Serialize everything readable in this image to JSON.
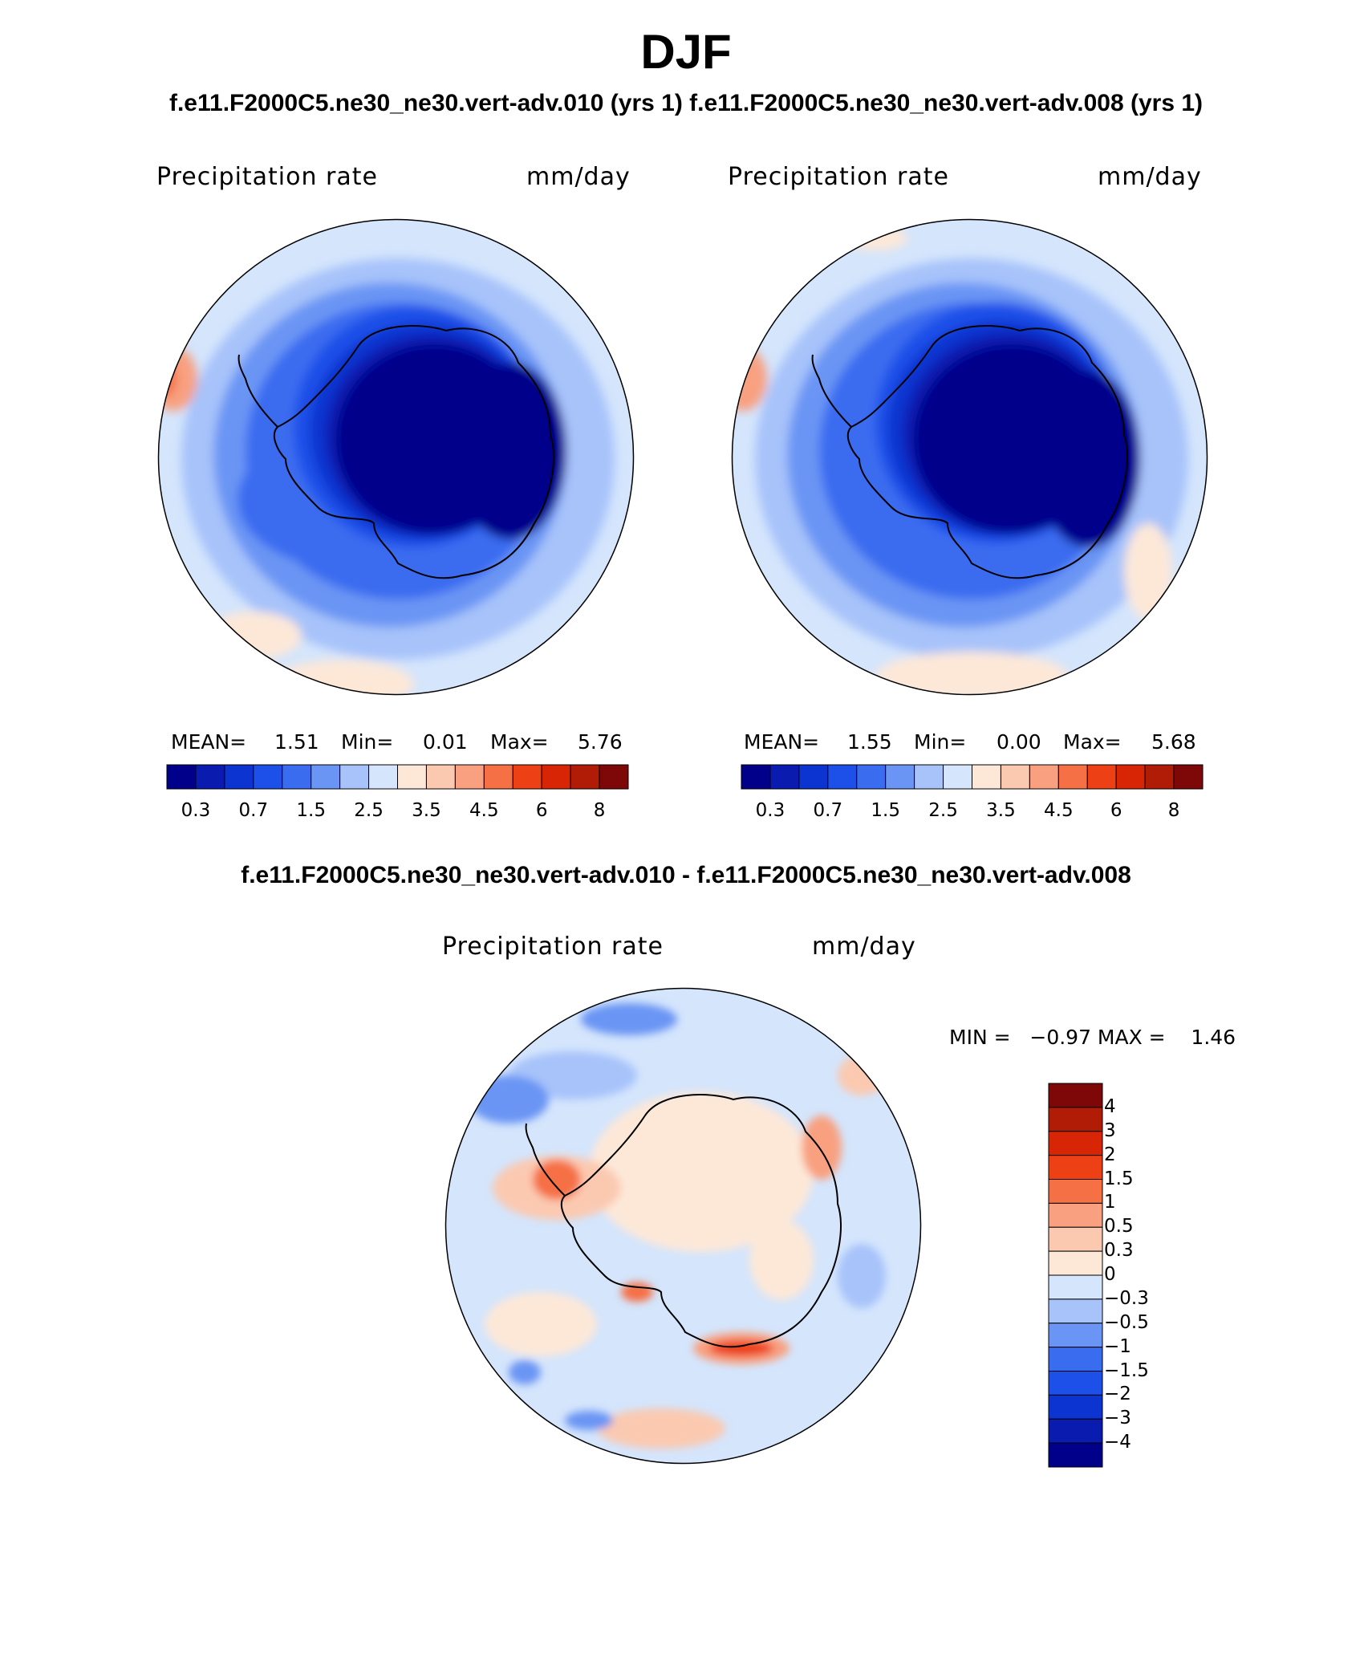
{
  "title": "DJF",
  "subtitle_top": "f.e11.F2000C5.ne30_ne30.vert-adv.010 (yrs 1) f.e11.F2000C5.ne30_ne30.vert-adv.008 (yrs 1)",
  "subtitle_diff": "f.e11.F2000C5.ne30_ne30.vert-adv.010 - f.e11.F2000C5.ne30_ne30.vert-adv.008",
  "panels": [
    {
      "variable": "Precipitation rate",
      "units": "mm/day",
      "mean_label": "MEAN=",
      "mean": "1.51",
      "min_label": "Min=",
      "min": "0.01",
      "max_label": "Max=",
      "max": "5.76"
    },
    {
      "variable": "Precipitation rate",
      "units": "mm/day",
      "mean_label": "MEAN=",
      "mean": "1.55",
      "min_label": "Min=",
      "min": "0.00",
      "max_label": "Max=",
      "max": "5.68"
    }
  ],
  "diff_panel": {
    "variable": "Precipitation rate",
    "units": "mm/day",
    "minmax_text": "MIN =   −0.97 MAX =    1.46"
  },
  "colorbar_top": {
    "colors": [
      "#00008b",
      "#0a1bb0",
      "#0b34d0",
      "#1c50e8",
      "#3a6cf0",
      "#6a95f4",
      "#a7c3fa",
      "#d4e5fc",
      "#fde8d8",
      "#fbc9b0",
      "#f8a080",
      "#f57044",
      "#ed4015",
      "#d82505",
      "#b01c05",
      "#7e0808"
    ],
    "ticks": [
      "0.3",
      "0.7",
      "1.5",
      "2.5",
      "3.5",
      "4.5",
      "6",
      "8"
    ]
  },
  "colorbar_diff": {
    "colors": [
      "#00008b",
      "#0a1bb0",
      "#0b34d0",
      "#1c50e8",
      "#3a6cf0",
      "#6a95f4",
      "#a7c3fa",
      "#d4e5fc",
      "#fde8d8",
      "#fbc9b0",
      "#f8a080",
      "#f57044",
      "#ed4015",
      "#d82505",
      "#b01c05",
      "#7e0808"
    ],
    "ticks": [
      "4",
      "3",
      "2",
      "1.5",
      "1",
      "0.5",
      "0.3",
      "0",
      "−0.3",
      "−0.5",
      "−1",
      "−1.5",
      "−2",
      "−3",
      "−4"
    ]
  }
}
